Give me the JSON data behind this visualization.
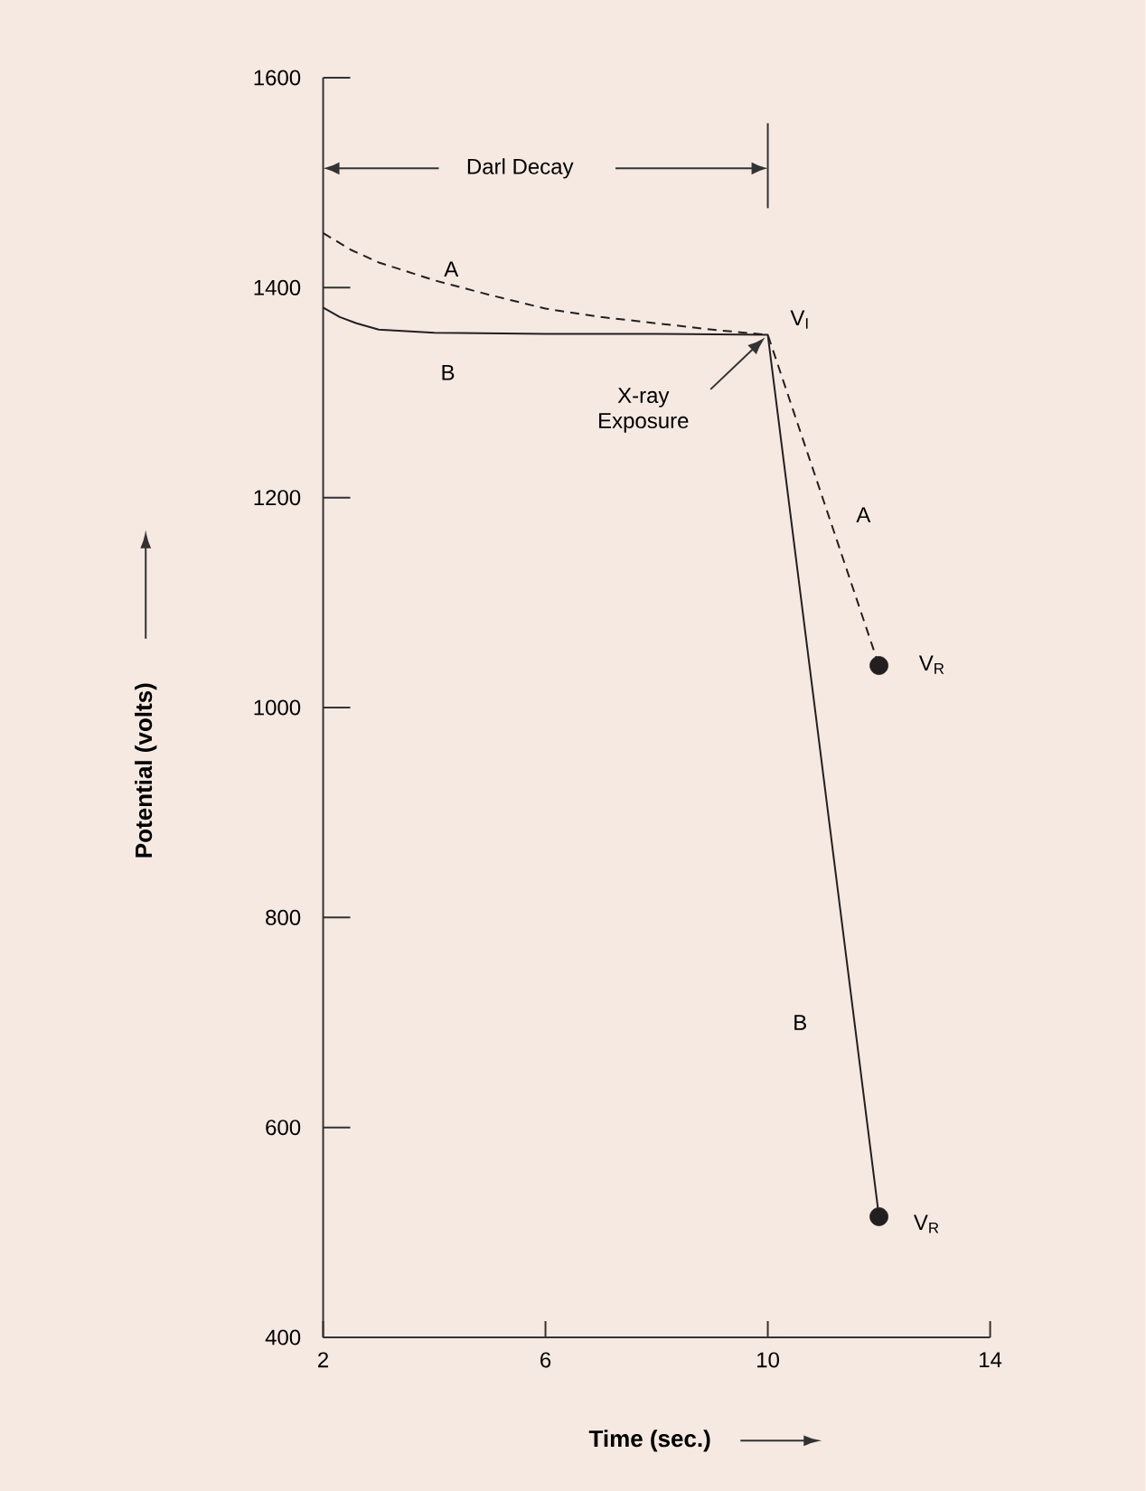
{
  "chart_data": {
    "type": "line",
    "xlabel": "Time (sec.)",
    "ylabel": "Potential (volts)",
    "xlim": [
      2,
      14
    ],
    "ylim": [
      400,
      1600
    ],
    "xticks": [
      2,
      6,
      10,
      14
    ],
    "yticks": [
      400,
      600,
      800,
      1000,
      1200,
      1400,
      1600
    ],
    "series": [
      {
        "color": "#231f20",
        "line_style": "dashed",
        "x": [
          2,
          2.5,
          3,
          4,
          5,
          6,
          7,
          8,
          9,
          10,
          12
        ],
        "values": [
          1452,
          1436,
          1424,
          1407,
          1393,
          1380,
          1372,
          1366,
          1360,
          1355,
          1040
        ]
      },
      {
        "color": "#231f20",
        "line_style": "solid",
        "x": [
          2,
          2.3,
          2.6,
          3,
          4,
          6,
          8,
          10,
          12
        ],
        "values": [
          1381,
          1372,
          1366,
          1360,
          1357,
          1356,
          1356,
          1355,
          515
        ]
      },
      {
        "type": "scatter",
        "color": "#231f20",
        "x": [
          12
        ],
        "values": [
          1040
        ]
      },
      {
        "type": "scatter",
        "color": "#231f20",
        "x": [
          12
        ],
        "values": [
          515
        ]
      }
    ],
    "annotations": [
      "Darl Decay",
      "A",
      "B",
      "V$_{I}$",
      "X-ray Exposure",
      "A",
      "V$_{R}$",
      "B",
      "V$_{R}$"
    ]
  }
}
